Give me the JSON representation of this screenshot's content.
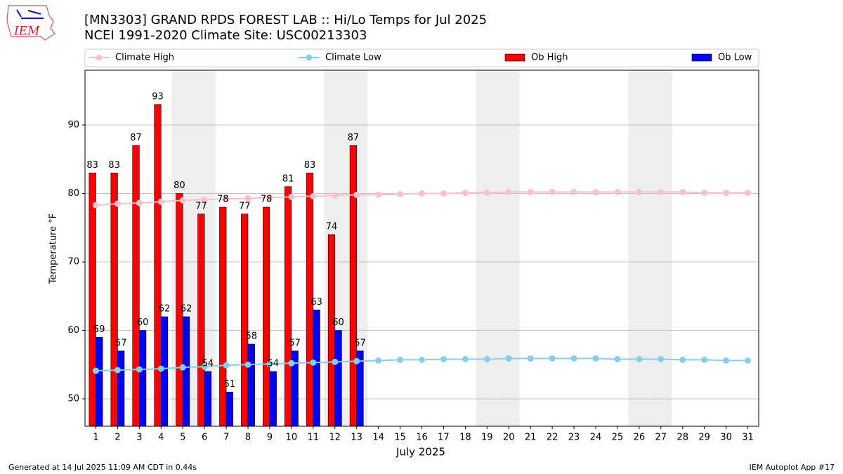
{
  "chart_data": {
    "type": "bar",
    "logo_text": "IEM",
    "title": "[MN3303] GRAND RPDS FOREST LAB :: Hi/Lo Temps for Jul 2025",
    "subtitle": "NCEI 1991-2020 Climate Site: USC00213303",
    "xlabel": "July 2025",
    "ylabel": "Temperature °F",
    "footer_left": "Generated at 14 Jul 2025 11:09 AM CDT in 0.44s",
    "footer_right": "IEM Autoplot App #17",
    "categories": [
      "1",
      "2",
      "3",
      "4",
      "5",
      "6",
      "7",
      "8",
      "9",
      "10",
      "11",
      "12",
      "13",
      "14",
      "15",
      "16",
      "17",
      "18",
      "19",
      "20",
      "21",
      "22",
      "23",
      "24",
      "25",
      "26",
      "27",
      "28",
      "29",
      "30",
      "31"
    ],
    "shaded_categories": [
      "5",
      "6",
      "12",
      "13",
      "19",
      "20",
      "26",
      "27"
    ],
    "ylim": [
      46,
      98
    ],
    "yticks": [
      50,
      60,
      70,
      80,
      90
    ],
    "grid": true,
    "series": [
      {
        "name": "Climate High",
        "type": "line",
        "color": "#ffc0cb",
        "values": [
          78.3,
          78.5,
          78.6,
          78.8,
          79.0,
          79.1,
          79.2,
          79.3,
          79.4,
          79.5,
          79.6,
          79.7,
          79.8,
          79.8,
          79.9,
          80.0,
          80.0,
          80.1,
          80.1,
          80.2,
          80.2,
          80.2,
          80.2,
          80.2,
          80.2,
          80.2,
          80.2,
          80.2,
          80.1,
          80.1,
          80.1
        ]
      },
      {
        "name": "Climate Low",
        "type": "line",
        "color": "#87ceeb",
        "values": [
          54.1,
          54.2,
          54.3,
          54.4,
          54.6,
          54.7,
          54.9,
          55.0,
          55.1,
          55.2,
          55.3,
          55.4,
          55.5,
          55.6,
          55.7,
          55.7,
          55.8,
          55.8,
          55.8,
          55.9,
          55.9,
          55.9,
          55.9,
          55.9,
          55.8,
          55.8,
          55.8,
          55.7,
          55.7,
          55.6,
          55.6
        ]
      },
      {
        "name": "Ob High",
        "type": "bar",
        "color": "#ff0000",
        "values": [
          83,
          83,
          87,
          93,
          80,
          77,
          78,
          77,
          78,
          81,
          83,
          74,
          87,
          null,
          null,
          null,
          null,
          null,
          null,
          null,
          null,
          null,
          null,
          null,
          null,
          null,
          null,
          null,
          null,
          null,
          null
        ]
      },
      {
        "name": "Ob Low",
        "type": "bar",
        "color": "#0000ff",
        "values": [
          59,
          57,
          60,
          62,
          62,
          54,
          51,
          58,
          54,
          57,
          63,
          60,
          57,
          null,
          null,
          null,
          null,
          null,
          null,
          null,
          null,
          null,
          null,
          null,
          null,
          null,
          null,
          null,
          null,
          null,
          null
        ]
      }
    ]
  }
}
